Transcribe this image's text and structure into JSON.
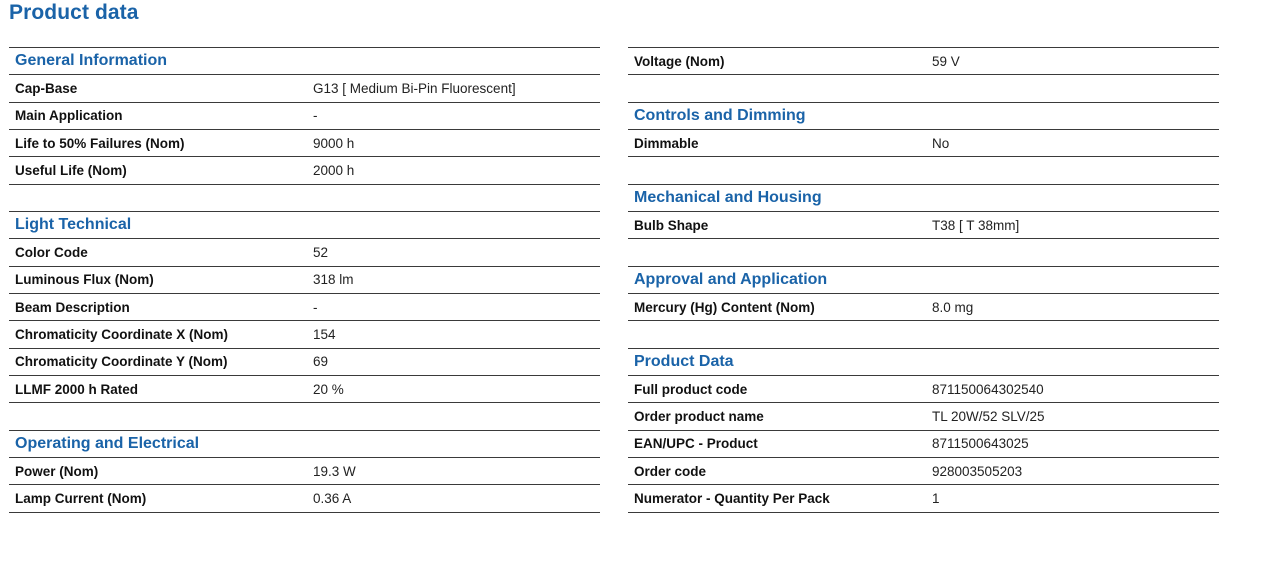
{
  "title": "Product data",
  "left": {
    "general": {
      "heading": "General Information",
      "rows": [
        {
          "label": "Cap-Base",
          "value": "G13 [ Medium Bi-Pin Fluorescent]"
        },
        {
          "label": "Main Application",
          "value": "-"
        },
        {
          "label": "Life to 50% Failures (Nom)",
          "value": "9000 h"
        },
        {
          "label": "Useful Life (Nom)",
          "value": "2000 h"
        }
      ]
    },
    "light": {
      "heading": "Light Technical",
      "rows": [
        {
          "label": "Color Code",
          "value": "52"
        },
        {
          "label": "Luminous Flux (Nom)",
          "value": "318 lm"
        },
        {
          "label": "Beam Description",
          "value": "-"
        },
        {
          "label": "Chromaticity Coordinate X (Nom)",
          "value": "154"
        },
        {
          "label": "Chromaticity Coordinate Y (Nom)",
          "value": "69"
        },
        {
          "label": "LLMF 2000 h Rated",
          "value": "20 %"
        }
      ]
    },
    "operating": {
      "heading": "Operating and Electrical",
      "rows": [
        {
          "label": "Power (Nom)",
          "value": "19.3 W"
        },
        {
          "label": "Lamp Current (Nom)",
          "value": "0.36 A"
        }
      ]
    }
  },
  "right": {
    "voltage": {
      "label": "Voltage (Nom)",
      "value": "59 V"
    },
    "controls": {
      "heading": "Controls and Dimming",
      "rows": [
        {
          "label": "Dimmable",
          "value": "No"
        }
      ]
    },
    "mechanical": {
      "heading": "Mechanical and Housing",
      "rows": [
        {
          "label": "Bulb Shape",
          "value": "T38 [ T 38mm]"
        }
      ]
    },
    "approval": {
      "heading": "Approval and Application",
      "rows": [
        {
          "label": "Mercury (Hg) Content (Nom)",
          "value": "8.0 mg"
        }
      ]
    },
    "product": {
      "heading": "Product Data",
      "rows": [
        {
          "label": "Full product code",
          "value": "871150064302540"
        },
        {
          "label": "Order product name",
          "value": "TL 20W/52 SLV/25"
        },
        {
          "label": "EAN/UPC - Product",
          "value": "8711500643025"
        },
        {
          "label": "Order code",
          "value": "928003505203"
        },
        {
          "label": "Numerator - Quantity Per Pack",
          "value": "1"
        }
      ]
    }
  }
}
